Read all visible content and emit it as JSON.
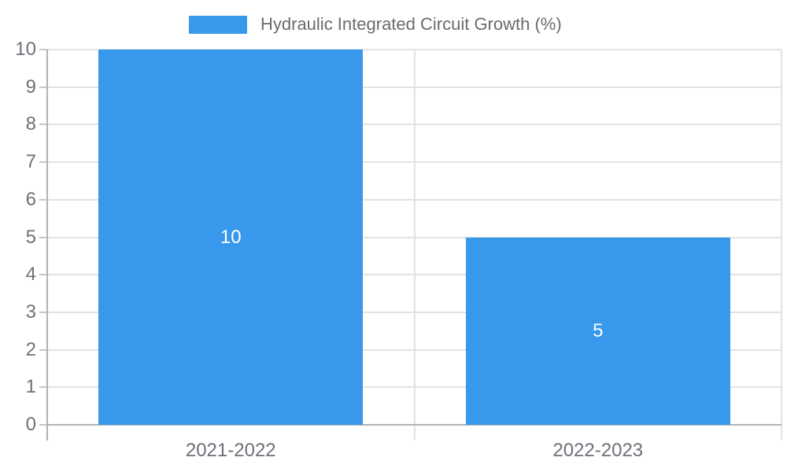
{
  "chart_data": {
    "type": "bar",
    "title": "",
    "categories": [
      "2021-2022",
      "2022-2023"
    ],
    "series": [
      {
        "name": "Hydraulic Integrated Circuit Growth (%)",
        "values": [
          10,
          5
        ]
      }
    ],
    "data_labels": [
      "10",
      "5"
    ],
    "y_ticks": [
      0,
      1,
      2,
      3,
      4,
      5,
      6,
      7,
      8,
      9,
      10
    ],
    "ylim": [
      0,
      10
    ],
    "grid": true,
    "legend_position": "top-center",
    "colors": {
      "bar": "#3899EC",
      "data_label": "#ffffff",
      "legend_text": "#6b6b6b",
      "axis_label": "#6E7079",
      "grid_line": "#E2E2E2",
      "axis_line": "#B2B2B2",
      "tick": "#C6C6C6"
    }
  }
}
